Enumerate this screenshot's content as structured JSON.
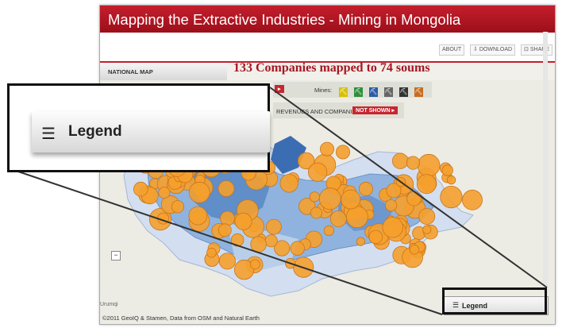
{
  "app": {
    "title": "Mapping the Extractive Industries - Mining in Mongolia"
  },
  "toolbar": {
    "about": "ABOUT",
    "download": "DOWNLOAD",
    "share": "SHARE"
  },
  "nav": {
    "national_map": "NATIONAL MAP"
  },
  "headline": "133 Companies mapped to 74 soums",
  "controls": {
    "mines_label": "Mines:",
    "revenues_label": "REVENUES AND COMPANIES:",
    "revenues_button": "NOT SHOWN",
    "mine_icons": [
      "gold-mine-icon",
      "coal-mine-icon",
      "copper-mine-icon",
      "iron-mine-icon",
      "uranium-mine-icon",
      "other-mine-icon"
    ],
    "mine_colors": [
      "#d8c000",
      "#2f8f3a",
      "#2d5da8",
      "#666666",
      "#333333",
      "#c96b1f"
    ]
  },
  "map": {
    "place_label": "Urumqi",
    "copyright": "©2011 GeoIQ & Stamen, Data from OSM and Natural Earth",
    "marker_color": "#f5a02e"
  },
  "legend": {
    "label": "Legend"
  },
  "zoom_callout": {
    "label": "Legend"
  }
}
